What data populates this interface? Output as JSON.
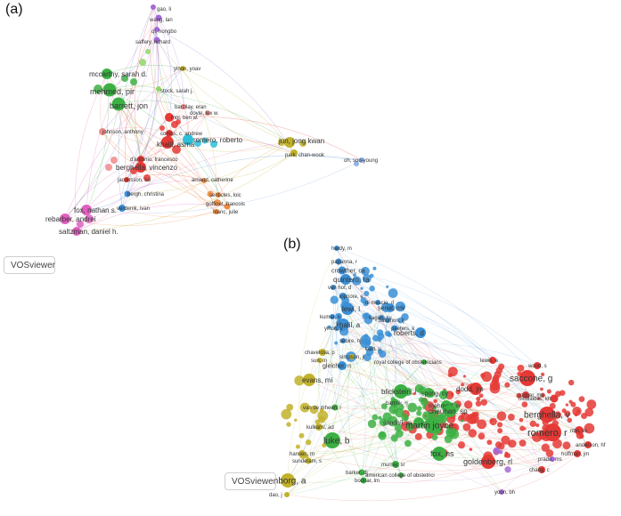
{
  "panels": [
    {
      "label": "(a)",
      "badge": "VOSviewer",
      "clusters": {
        "red": "#e53935",
        "green": "#3cb043",
        "blue": "#3a8fd6",
        "purple": "#a46bd6",
        "olive": "#c2b22a",
        "pink": "#e05fc0",
        "cyan": "#2cc0d8",
        "orange": "#f08a3a",
        "lightgreen": "#8fd66a",
        "salmon": "#f08a8a",
        "lightblue": "#7fa6e0"
      },
      "nodes": [
        {
          "label": "gao, li",
          "c": "purple"
        },
        {
          "label": "wang, lan",
          "c": "purple"
        },
        {
          "label": "qi, hongbo",
          "c": "purple"
        },
        {
          "label": "saffery, richard",
          "c": "purple"
        },
        {
          "label": "mccarthy, sarah d.",
          "c": "green"
        },
        {
          "label": "mehmed, pir",
          "c": "green"
        },
        {
          "label": "stock, sarah j.",
          "c": "lightgreen"
        },
        {
          "label": "barrett, jon",
          "c": "green"
        },
        {
          "label": "yinon, yoav",
          "c": "olive"
        },
        {
          "label": "barzilay, eran",
          "c": "salmon"
        },
        {
          "label": "doyle, lex w.",
          "c": "salmon"
        },
        {
          "label": "mol, ben w.",
          "c": "red"
        },
        {
          "label": "romero, roberto",
          "c": "cyan"
        },
        {
          "label": "combs, c. andrew",
          "c": "red"
        },
        {
          "label": "khalil, asma",
          "c": "red"
        },
        {
          "label": "jun, jong kwan",
          "c": "olive"
        },
        {
          "label": "park, chan-wook",
          "c": "olive"
        },
        {
          "label": "oh, soo-young",
          "c": "lightblue"
        },
        {
          "label": "johnson, anthony",
          "c": "salmon"
        },
        {
          "label": "d'antonio, francesco",
          "c": "red"
        },
        {
          "label": "berghella, vincenzo",
          "c": "red"
        },
        {
          "label": "arnaud, catherine",
          "c": "orange"
        },
        {
          "label": "jacobsson, bo",
          "c": "red"
        },
        {
          "label": "bergh, christina",
          "c": "blue"
        },
        {
          "label": "senticles, loic",
          "c": "orange"
        },
        {
          "label": "verdenik, ivan",
          "c": "blue"
        },
        {
          "label": "goffinet, francois",
          "c": "orange"
        },
        {
          "label": "blanc, julie",
          "c": "orange"
        },
        {
          "label": "fox, nathan s.",
          "c": "pink"
        },
        {
          "label": "rebarber, andrei",
          "c": "pink"
        },
        {
          "label": "saltzman, daniel h.",
          "c": "pink"
        }
      ]
    },
    {
      "label": "(b)",
      "badge": "VOSviewer",
      "clusters": {
        "red": "#e53935",
        "green": "#3cb043",
        "blue": "#3a8fd6",
        "olive": "#c2b22a",
        "purple": "#a46bd6"
      },
      "nodes": [
        {
          "label": "hardy, m",
          "c": "blue"
        },
        {
          "label": "papanna, r",
          "c": "blue"
        },
        {
          "label": "crowther, ca",
          "c": "blue"
        },
        {
          "label": "quintero, ra",
          "c": "blue"
        },
        {
          "label": "van hof, d",
          "c": "blue"
        },
        {
          "label": "lopriore, e",
          "c": "blue"
        },
        {
          "label": "di mascio, d",
          "c": "blue"
        },
        {
          "label": "senat, mv",
          "c": "blue"
        },
        {
          "label": "kagan, kv",
          "c": "blue"
        },
        {
          "label": "lewi, l",
          "c": "blue"
        },
        {
          "label": "kumar, s",
          "c": "blue"
        },
        {
          "label": "salomon, lj",
          "c": "blue"
        },
        {
          "label": "khalil, a",
          "c": "blue"
        },
        {
          "label": "yinon, y",
          "c": "blue"
        },
        {
          "label": "peeters, k",
          "c": "blue"
        },
        {
          "label": "roberts, d",
          "c": "blue"
        },
        {
          "label": "sebire, nj",
          "c": "blue"
        },
        {
          "label": "kaid, u",
          "c": "blue"
        },
        {
          "label": "chavelosa, p",
          "c": "olive"
        },
        {
          "label": "sun, m",
          "c": "olive"
        },
        {
          "label": "simpson, jl",
          "c": "olive"
        },
        {
          "label": "royal college of obstetricians",
          "c": "green"
        },
        {
          "label": "gleicher, n",
          "c": "blue"
        },
        {
          "label": "evans, mi",
          "c": "olive"
        },
        {
          "label": "lewis, e",
          "c": "red"
        },
        {
          "label": "wood, s",
          "c": "red"
        },
        {
          "label": "saccone, g",
          "c": "red"
        },
        {
          "label": "rodger, ma",
          "c": "red"
        },
        {
          "label": "blickstein, i",
          "c": "green"
        },
        {
          "label": "spong, cy",
          "c": "green"
        },
        {
          "label": "dodd, jm",
          "c": "red"
        },
        {
          "label": "bartnik, rj",
          "c": "green"
        },
        {
          "label": "mehmed, n",
          "c": "green"
        },
        {
          "label": "nicolaides, kh",
          "c": "red"
        },
        {
          "label": "van de mheen, l",
          "c": "green"
        },
        {
          "label": "chauhan, sp",
          "c": "green"
        },
        {
          "label": "berghella, v",
          "c": "red"
        },
        {
          "label": "nbo, ks",
          "c": "red"
        },
        {
          "label": "sandall, m",
          "c": "green"
        },
        {
          "label": "martin joyce",
          "c": "green"
        },
        {
          "label": "romero, r",
          "c": "red"
        },
        {
          "label": "luke, b",
          "c": "green"
        },
        {
          "label": "kulkarni, ad",
          "c": "olive"
        },
        {
          "label": "fox, ns",
          "c": "green"
        },
        {
          "label": "goldenberg, rl",
          "c": "red"
        },
        {
          "label": "hansen, m",
          "c": "olive"
        },
        {
          "label": "sunderam, s",
          "c": "olive"
        },
        {
          "label": "murray, sr",
          "c": "green"
        },
        {
          "label": "barker, dj",
          "c": "green"
        },
        {
          "label": "american college of obstetrici",
          "c": "green"
        },
        {
          "label": "pinborg, a",
          "c": "olive"
        },
        {
          "label": "bodnar, lm",
          "c": "green"
        },
        {
          "label": "dao, j",
          "c": "olive"
        },
        {
          "label": "anderson, hf",
          "c": "red"
        },
        {
          "label": "hoffman, jm",
          "c": "red"
        },
        {
          "label": "prado, ms",
          "c": "purple"
        },
        {
          "label": "yoon, bh",
          "c": "purple"
        },
        {
          "label": "chang, c",
          "c": "red"
        }
      ]
    }
  ]
}
